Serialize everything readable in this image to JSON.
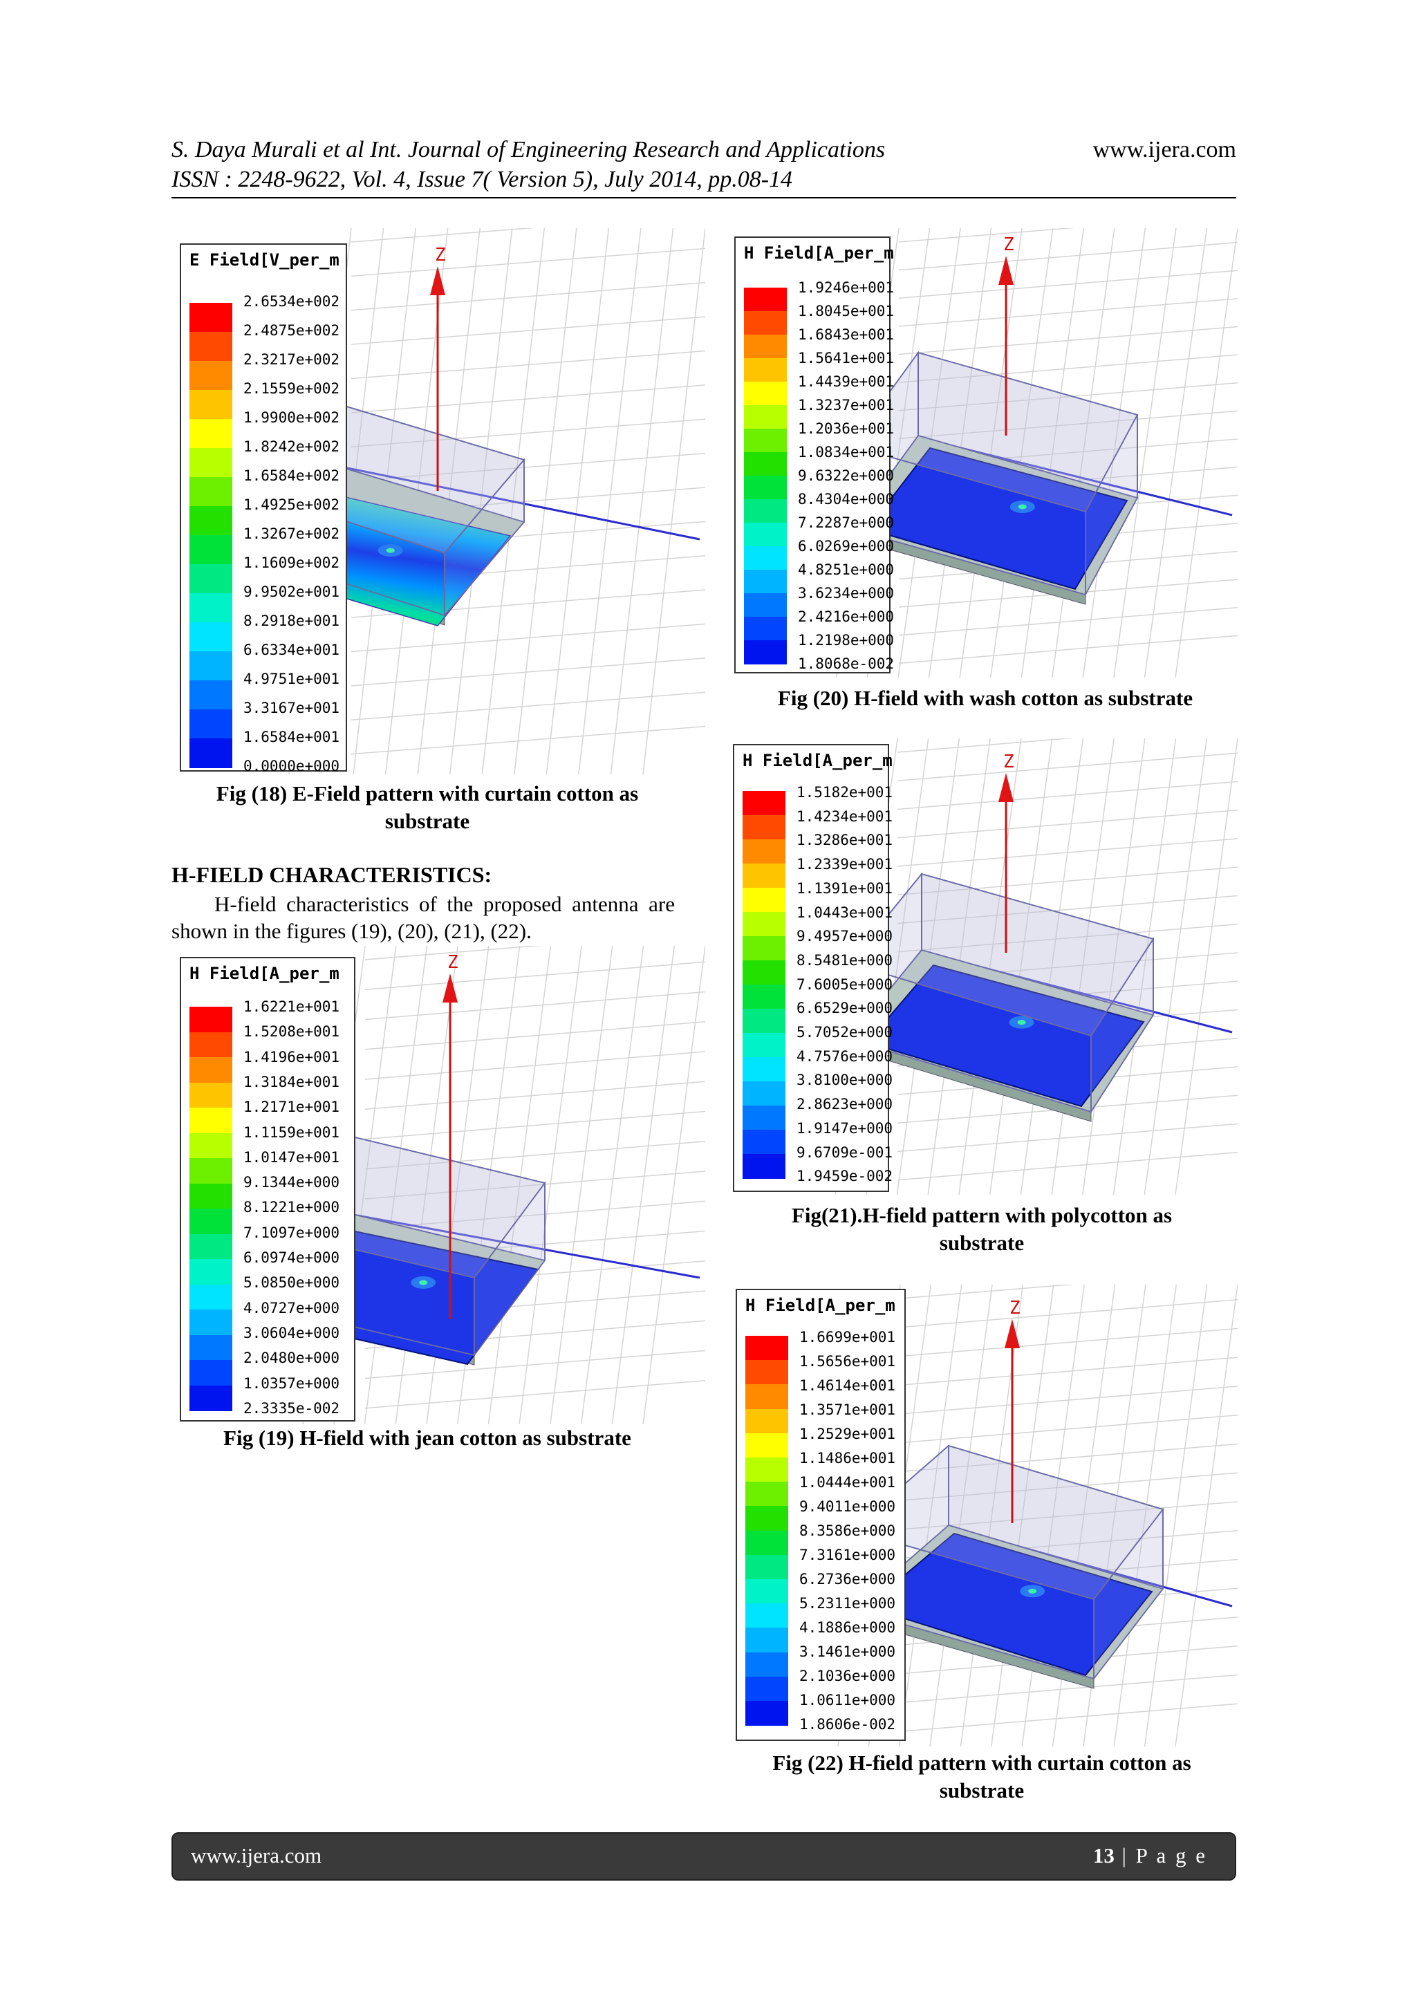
{
  "header": {
    "line1": "S. Daya Murali et al Int. Journal of Engineering Research and Applications",
    "site": "www.ijera.com",
    "line2": "ISSN : 2248-9622, Vol. 4, Issue 7( Version 5), July 2014, pp.08-14"
  },
  "colors": [
    "#ff0000",
    "#ff4a00",
    "#ff8a00",
    "#ffc400",
    "#ffff00",
    "#b8ff00",
    "#6cf000",
    "#22e000",
    "#00e23a",
    "#00e882",
    "#00f2c8",
    "#00e4ff",
    "#00b4ff",
    "#0078ff",
    "#0045ff",
    "#0014f0"
  ],
  "figures": [
    {
      "legend_title": "E Field[V_per_m",
      "values": [
        "2.6534e+002",
        "2.4875e+002",
        "2.3217e+002",
        "2.1559e+002",
        "1.9900e+002",
        "1.8242e+002",
        "1.6584e+002",
        "1.4925e+002",
        "1.3267e+002",
        "1.1609e+002",
        "9.9502e+001",
        "8.2918e+001",
        "6.6334e+001",
        "4.9751e+001",
        "3.3167e+001",
        "1.6584e+001",
        "0.0000e+000"
      ],
      "axis_label": "Z",
      "caption": "Fig (18) E-Field pattern with curtain cotton as substrate"
    },
    {
      "legend_title": "H Field[A_per_m",
      "values": [
        "1.6221e+001",
        "1.5208e+001",
        "1.4196e+001",
        "1.3184e+001",
        "1.2171e+001",
        "1.1159e+001",
        "1.0147e+001",
        "9.1344e+000",
        "8.1221e+000",
        "7.1097e+000",
        "6.0974e+000",
        "5.0850e+000",
        "4.0727e+000",
        "3.0604e+000",
        "2.0480e+000",
        "1.0357e+000",
        "2.3335e-002"
      ],
      "axis_label": "Z",
      "caption": "Fig (19) H-field with jean cotton as substrate"
    },
    {
      "legend_title": "H Field[A_per_m",
      "values": [
        "1.9246e+001",
        "1.8045e+001",
        "1.6843e+001",
        "1.5641e+001",
        "1.4439e+001",
        "1.3237e+001",
        "1.2036e+001",
        "1.0834e+001",
        "9.6322e+000",
        "8.4304e+000",
        "7.2287e+000",
        "6.0269e+000",
        "4.8251e+000",
        "3.6234e+000",
        "2.4216e+000",
        "1.2198e+000",
        "1.8068e-002"
      ],
      "axis_label": "Z",
      "caption": "Fig (20) H-field with wash cotton as substrate"
    },
    {
      "legend_title": "H Field[A_per_m",
      "values": [
        "1.5182e+001",
        "1.4234e+001",
        "1.3286e+001",
        "1.2339e+001",
        "1.1391e+001",
        "1.0443e+001",
        "9.4957e+000",
        "8.5481e+000",
        "7.6005e+000",
        "6.6529e+000",
        "5.7052e+000",
        "4.7576e+000",
        "3.8100e+000",
        "2.8623e+000",
        "1.9147e+000",
        "9.6709e-001",
        "1.9459e-002"
      ],
      "axis_label": "Z",
      "caption": "Fig(21).H-field pattern with polycotton as substrate"
    },
    {
      "legend_title": "H Field[A_per_m",
      "values": [
        "1.6699e+001",
        "1.5656e+001",
        "1.4614e+001",
        "1.3571e+001",
        "1.2529e+001",
        "1.1486e+001",
        "1.0444e+001",
        "9.4011e+000",
        "8.3586e+000",
        "7.3161e+000",
        "6.2736e+000",
        "5.2311e+000",
        "4.1886e+000",
        "3.1461e+000",
        "2.1036e+000",
        "1.0611e+000",
        "1.8606e-002"
      ],
      "axis_label": "Z",
      "caption": "Fig (22) H-field pattern with curtain cotton as substrate"
    }
  ],
  "section_heading": "H-FIELD CHARACTERISTICS:",
  "section_text": "H-field characteristics of the proposed antenna are shown in the figures (19), (20), (21), (22).",
  "footer": {
    "site": "www.ijera.com",
    "page_number": "13",
    "page_label": " | P a g e"
  }
}
